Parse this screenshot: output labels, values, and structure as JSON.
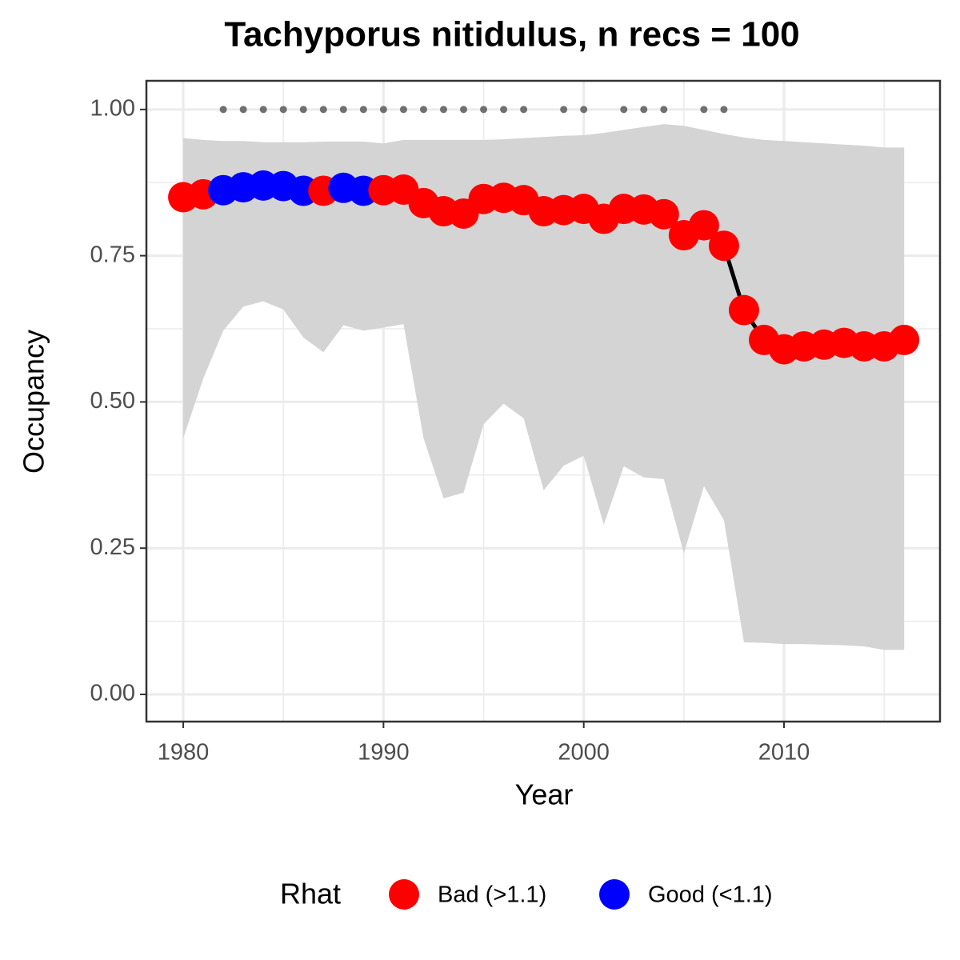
{
  "chart_data": {
    "type": "line",
    "title": "Tachyporus nitidulus, n recs = 100",
    "x_label": "Year",
    "y_label": "Occupancy",
    "x": [
      1980,
      1981,
      1982,
      1983,
      1984,
      1985,
      1986,
      1987,
      1988,
      1989,
      1990,
      1991,
      1992,
      1993,
      1994,
      1995,
      1996,
      1997,
      1998,
      1999,
      2000,
      2001,
      2002,
      2003,
      2004,
      2005,
      2006,
      2007,
      2008,
      2009,
      2010,
      2011,
      2012,
      2013,
      2014,
      2015,
      2016
    ],
    "values": [
      0.85,
      0.855,
      0.862,
      0.867,
      0.87,
      0.869,
      0.861,
      0.861,
      0.866,
      0.861,
      0.862,
      0.863,
      0.84,
      0.826,
      0.822,
      0.847,
      0.849,
      0.845,
      0.826,
      0.828,
      0.83,
      0.813,
      0.83,
      0.829,
      0.821,
      0.785,
      0.802,
      0.767,
      0.657,
      0.606,
      0.59,
      0.595,
      0.598,
      0.601,
      0.595,
      0.595,
      0.606
    ],
    "upper": [
      0.951,
      0.948,
      0.946,
      0.946,
      0.944,
      0.944,
      0.944,
      0.945,
      0.945,
      0.945,
      0.942,
      0.948,
      0.948,
      0.948,
      0.948,
      0.948,
      0.949,
      0.951,
      0.953,
      0.955,
      0.956,
      0.96,
      0.965,
      0.97,
      0.975,
      0.972,
      0.965,
      0.958,
      0.952,
      0.948,
      0.946,
      0.944,
      0.942,
      0.94,
      0.938,
      0.935,
      0.935
    ],
    "lower": [
      0.438,
      0.54,
      0.622,
      0.663,
      0.672,
      0.658,
      0.61,
      0.585,
      0.631,
      0.622,
      0.627,
      0.633,
      0.438,
      0.335,
      0.345,
      0.462,
      0.497,
      0.472,
      0.349,
      0.391,
      0.408,
      0.29,
      0.39,
      0.371,
      0.368,
      0.241,
      0.356,
      0.298,
      0.089,
      0.088,
      0.086,
      0.086,
      0.085,
      0.084,
      0.082,
      0.076,
      0.076
    ],
    "rhat_group": [
      0,
      0,
      1,
      1,
      1,
      1,
      1,
      0,
      1,
      1,
      0,
      0,
      0,
      0,
      0,
      0,
      0,
      0,
      0,
      0,
      0,
      0,
      0,
      0,
      0,
      0,
      0,
      0,
      0,
      0,
      0,
      0,
      0,
      0,
      0,
      0,
      0
    ],
    "legend_title": "Rhat",
    "legend": [
      {
        "label": "Bad (>1.1)",
        "color": "#ff0000"
      },
      {
        "label": "Good (<1.1)",
        "color": "#0000ff"
      }
    ],
    "line_color": "#000000",
    "ribbon_color": "#d4d4d4",
    "record_points": {
      "x": [
        1982,
        1983,
        1984,
        1985,
        1986,
        1987,
        1988,
        1989,
        1990,
        1991,
        1992,
        1993,
        1994,
        1995,
        1996,
        1997,
        1999,
        2000,
        2002,
        2003,
        2004,
        2006,
        2007
      ],
      "values": [
        1,
        1,
        1,
        1,
        1,
        1,
        1,
        1,
        1,
        1,
        1,
        1,
        1,
        1,
        1,
        1,
        1,
        1,
        1,
        1,
        1,
        1,
        1
      ],
      "color": "#707070"
    },
    "xlim": [
      1978.16,
      2017.79
    ],
    "ylim": [
      -0.0465,
      1.049
    ],
    "xticks": [
      1980,
      1990,
      2000,
      2010
    ],
    "minor_xticks": [
      1985,
      1995,
      2005,
      2015
    ],
    "yticks": [
      {
        "value": 0,
        "label": "0.00"
      },
      {
        "value": 0.25,
        "label": "0.25"
      },
      {
        "value": 0.5,
        "label": "0.50"
      },
      {
        "value": 0.75,
        "label": "0.75"
      },
      {
        "value": 1,
        "label": "1.00"
      }
    ],
    "minor_yticks": [
      0.125,
      0.375,
      0.625,
      0.875
    ],
    "grid": true
  }
}
